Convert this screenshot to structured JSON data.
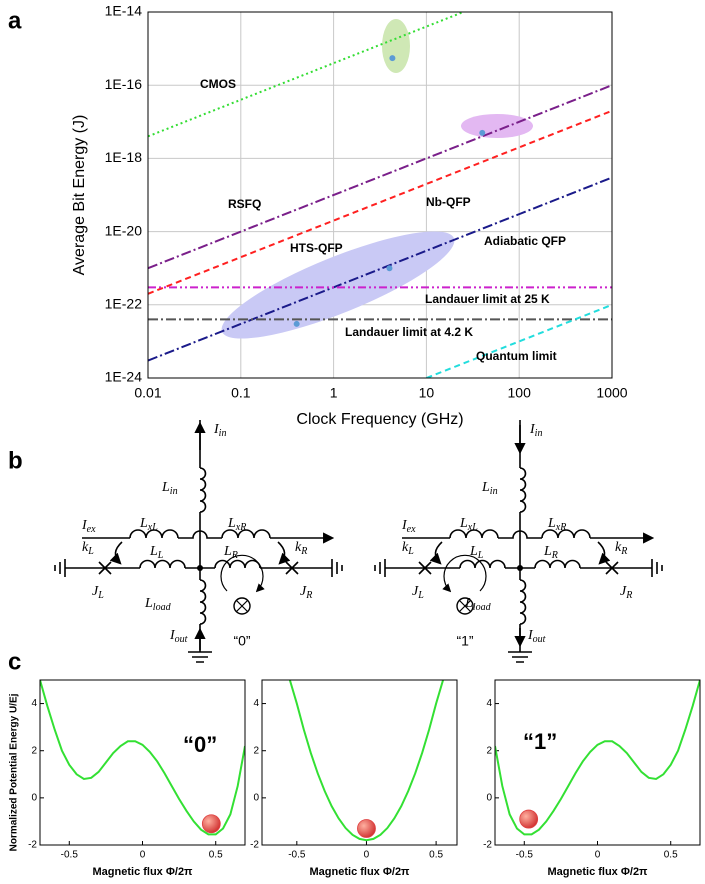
{
  "panel_labels": [
    "a",
    "b",
    "c"
  ],
  "chart_data": [
    {
      "type": "line",
      "xlabel": "Clock Frequency (GHz)",
      "ylabel": "Average Bit Energy (J)",
      "log_x": true,
      "log_y": true,
      "grid": true,
      "xlim": [
        0.01,
        1000
      ],
      "ylim": [
        1e-24,
        1e-14
      ],
      "xticks": [
        0.01,
        0.1,
        1,
        10,
        100,
        1000
      ],
      "yticks": [
        {
          "value": 1e-24,
          "label": "1E-24"
        },
        {
          "value": 1e-22,
          "label": "1E-22"
        },
        {
          "value": 1e-20,
          "label": "1E-20"
        },
        {
          "value": 1e-18,
          "label": "1E-18"
        },
        {
          "value": 1e-16,
          "label": "1E-16"
        },
        {
          "value": 1e-14,
          "label": "1E-14"
        }
      ],
      "series": [
        {
          "name": "CMOS",
          "color": "#33dd33",
          "style": "dotted",
          "x": [
            0.01,
            25
          ],
          "values": [
            4e-18,
            1e-14
          ]
        },
        {
          "name": "RSFQ",
          "color": "#7a1f8a",
          "style": "dashdot",
          "x": [
            0.01,
            1000
          ],
          "values": [
            1e-21,
            1e-16
          ]
        },
        {
          "name": "Nb-QFP",
          "color": "#ff2020",
          "style": "dashed",
          "x": [
            0.01,
            1000
          ],
          "values": [
            2e-22,
            2e-17
          ]
        },
        {
          "name": "Adiabatic QFP",
          "color": "#1a1a8a",
          "style": "dashdot",
          "x": [
            0.01,
            1000
          ],
          "values": [
            3e-24,
            3e-19
          ]
        },
        {
          "name": "Landauer limit at 25 K",
          "color": "#cc22cc",
          "style": "dashdotdot",
          "x": [
            0.01,
            1000
          ],
          "values": [
            3e-22,
            3e-22
          ]
        },
        {
          "name": "Landauer limit at 4.2 K",
          "color": "#555555",
          "style": "dashdot",
          "x": [
            0.01,
            1000
          ],
          "values": [
            4e-23,
            4e-23
          ]
        },
        {
          "name": "Quantum limit",
          "color": "#22dddd",
          "style": "dashed",
          "x": [
            10,
            1000
          ],
          "values": [
            1e-24,
            1e-22
          ]
        }
      ],
      "points": {
        "color": "#5b9bd5",
        "x": [
          4.3,
          40,
          4,
          0.4
        ],
        "values": [
          5.5e-16,
          5e-18,
          1e-21,
          3e-23
        ]
      },
      "annotations": [
        "HTS-QFP"
      ]
    },
    {
      "type": "line",
      "xlabel": "Magnetic flux Φ/2π",
      "ylabel": "Normalized Potential Energy U/Ej",
      "xlim": [
        -0.7,
        0.7
      ],
      "ylim": [
        -2,
        5
      ],
      "xticks": [
        -0.5,
        0,
        0.5
      ],
      "yticks": [
        -2,
        0,
        2,
        4
      ],
      "color": "#33e033",
      "x": [
        -0.7,
        -0.65,
        -0.6,
        -0.55,
        -0.5,
        -0.45,
        -0.4,
        -0.35,
        -0.3,
        -0.25,
        -0.2,
        -0.15,
        -0.1,
        -0.05,
        0,
        0.05,
        0.1,
        0.15,
        0.2,
        0.25,
        0.3,
        0.35,
        0.4,
        0.45,
        0.5,
        0.55,
        0.6,
        0.65,
        0.7
      ],
      "values": [
        5.0,
        3.9,
        2.9,
        2.0,
        1.4,
        1.0,
        0.8,
        0.85,
        1.1,
        1.5,
        1.9,
        2.2,
        2.4,
        2.4,
        2.25,
        1.95,
        1.55,
        1.05,
        0.5,
        -0.05,
        -0.55,
        -1.0,
        -1.35,
        -1.55,
        -1.55,
        -1.3,
        -0.7,
        0.5,
        2.2
      ],
      "marker": {
        "x": 0.47,
        "y": -1.1,
        "color": "#e04040"
      },
      "annotation": "“0”"
    },
    {
      "type": "line",
      "xlabel": "Magnetic flux Φ/2π",
      "xlim": [
        -0.75,
        0.65
      ],
      "ylim": [
        -2,
        5
      ],
      "xticks": [
        -0.5,
        0,
        0.5
      ],
      "yticks": [
        -2,
        0,
        2,
        4
      ],
      "color": "#33e033",
      "x": [
        -0.55,
        -0.5,
        -0.45,
        -0.4,
        -0.35,
        -0.3,
        -0.25,
        -0.2,
        -0.15,
        -0.1,
        -0.05,
        0,
        0.05,
        0.1,
        0.15,
        0.2,
        0.25,
        0.3,
        0.35,
        0.4,
        0.45,
        0.5,
        0.55
      ],
      "values": [
        5.0,
        4.0,
        2.9,
        1.91,
        1.04,
        0.29,
        -0.35,
        -0.87,
        -1.28,
        -1.57,
        -1.74,
        -1.8,
        -1.74,
        -1.57,
        -1.28,
        -0.87,
        -0.35,
        0.29,
        1.04,
        1.91,
        2.9,
        4.0,
        5.0
      ],
      "marker": {
        "x": 0,
        "y": -1.3,
        "color": "#e04040"
      }
    },
    {
      "type": "line",
      "xlabel": "Magnetic flux Φ/2π",
      "xlim": [
        -0.7,
        0.7
      ],
      "ylim": [
        -2,
        5
      ],
      "xticks": [
        -0.5,
        0,
        0.5
      ],
      "yticks": [
        -2,
        0,
        2,
        4
      ],
      "color": "#33e033",
      "x": [
        -0.7,
        -0.65,
        -0.6,
        -0.55,
        -0.5,
        -0.45,
        -0.4,
        -0.35,
        -0.3,
        -0.25,
        -0.2,
        -0.15,
        -0.1,
        -0.05,
        0,
        0.05,
        0.1,
        0.15,
        0.2,
        0.25,
        0.3,
        0.35,
        0.4,
        0.45,
        0.5,
        0.55,
        0.6,
        0.65,
        0.7
      ],
      "values": [
        2.2,
        0.5,
        -0.7,
        -1.3,
        -1.55,
        -1.55,
        -1.35,
        -1.0,
        -0.55,
        -0.05,
        0.5,
        1.05,
        1.55,
        1.95,
        2.25,
        2.4,
        2.4,
        2.2,
        1.9,
        1.5,
        1.1,
        0.85,
        0.8,
        1.0,
        1.4,
        2.0,
        2.9,
        3.9,
        5.0
      ],
      "marker": {
        "x": -0.47,
        "y": -0.9,
        "color": "#e04040"
      },
      "annotation": "“1”"
    }
  ],
  "circuits": [
    {
      "labels": [
        {
          "base": "I",
          "sub": "in"
        },
        {
          "base": "L",
          "sub": "in"
        },
        {
          "base": "I",
          "sub": "ex"
        },
        {
          "base": "L",
          "sub": "xL"
        },
        {
          "base": "L",
          "sub": "xR"
        },
        {
          "base": "k",
          "sub": "L"
        },
        {
          "base": "L",
          "sub": "L"
        },
        {
          "base": "L",
          "sub": "R"
        },
        {
          "base": "k",
          "sub": "R"
        },
        {
          "base": "J",
          "sub": "L"
        },
        {
          "base": "J",
          "sub": "R"
        },
        {
          "base": "L",
          "sub": "load"
        },
        {
          "base": "I",
          "sub": "out"
        }
      ],
      "state": "“0”"
    },
    {
      "labels": [
        {
          "base": "I",
          "sub": "in"
        },
        {
          "base": "L",
          "sub": "in"
        },
        {
          "base": "I",
          "sub": "ex"
        },
        {
          "base": "L",
          "sub": "xL"
        },
        {
          "base": "L",
          "sub": "xR"
        },
        {
          "base": "k",
          "sub": "L"
        },
        {
          "base": "L",
          "sub": "L"
        },
        {
          "base": "L",
          "sub": "R"
        },
        {
          "base": "k",
          "sub": "R"
        },
        {
          "base": "J",
          "sub": "L"
        },
        {
          "base": "J",
          "sub": "R"
        },
        {
          "base": "L",
          "sub": "load"
        },
        {
          "base": "I",
          "sub": "out"
        }
      ],
      "state": "“1”"
    }
  ]
}
